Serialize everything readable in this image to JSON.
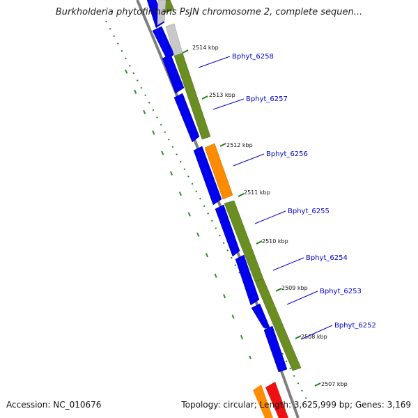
{
  "title": "Burkholderia phytofirmans PsJN chromosome 2, complete sequen...",
  "footer": {
    "accession": "Accession: NC_010676",
    "summary": "Topology: circular; Length: 3,625,999 bp; Genes: 3,169"
  },
  "colors": {
    "forward_cds": "#0000ee",
    "rrna_like": "#ff8c00",
    "green_track": "#6b8e23",
    "gray_track": "#bfbfbf",
    "red_feature": "#ee1111",
    "backbone": "#7f7f7f",
    "tick": "#1a7f1a",
    "label": "#0000cc"
  },
  "ticks": [
    "2514 kbp",
    "2513 kbp",
    "2512 kbp",
    "2511 kbp",
    "2510 kbp",
    "2509 kbp",
    "2508 kbp",
    "2507 kbp"
  ],
  "genes": [
    "Bphyt_6258",
    "Bphyt_6257",
    "Bphyt_6256",
    "Bphyt_6255",
    "Bphyt_6254",
    "Bphyt_6253",
    "Bphyt_6252"
  ]
}
